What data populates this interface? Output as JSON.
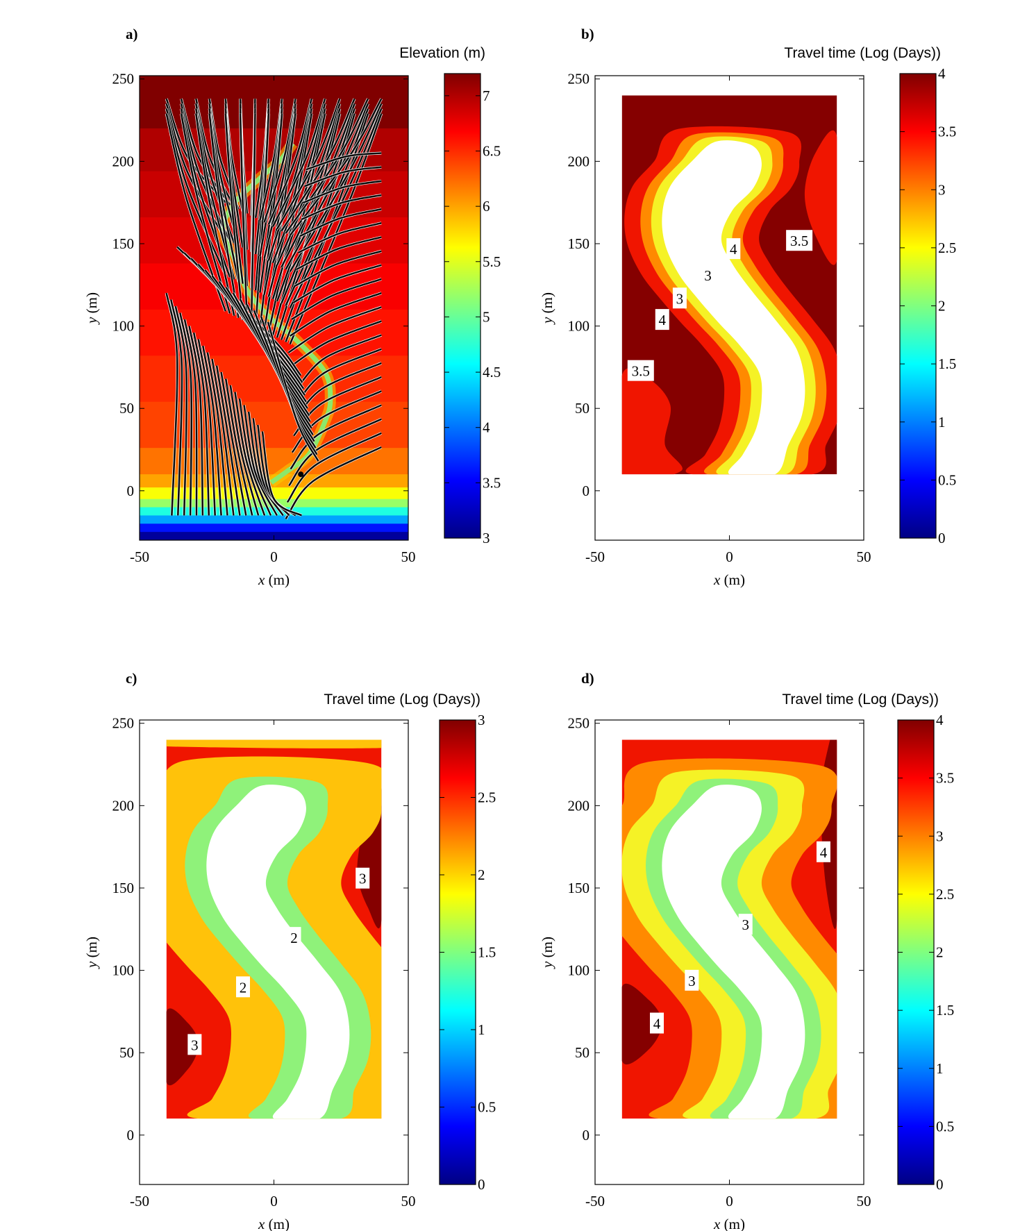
{
  "figure": {
    "panels": [
      {
        "id": "a",
        "label": "a)",
        "xlabel_var": "x",
        "xlabel_unit": " (m)",
        "ylabel_var": "y",
        "ylabel_unit": " (m)",
        "colorbar_title": "Elevation (m)",
        "xlim": [
          -50,
          50
        ],
        "ylim": [
          -30,
          252
        ],
        "xticks": [
          "-50",
          "0",
          "50"
        ],
        "yticks": [
          "0",
          "50",
          "100",
          "150",
          "200",
          "250"
        ],
        "colorbar_range": [
          3,
          7.2
        ],
        "colorbar_ticks": [
          "3",
          "3.5",
          "4",
          "4.5",
          "5",
          "5.5",
          "6",
          "6.5",
          "7"
        ],
        "contour_labels": []
      },
      {
        "id": "b",
        "label": "b)",
        "xlabel_var": "x",
        "xlabel_unit": " (m)",
        "ylabel_var": "y",
        "ylabel_unit": " (m)",
        "colorbar_title": "Travel time (Log (Days))",
        "xlim": [
          -50,
          50
        ],
        "ylim": [
          -30,
          252
        ],
        "xticks": [
          "-50",
          "0",
          "50"
        ],
        "yticks": [
          "0",
          "50",
          "100",
          "150",
          "200",
          "250"
        ],
        "colorbar_range": [
          0,
          4
        ],
        "colorbar_ticks": [
          "0",
          "0.5",
          "1",
          "1.5",
          "2",
          "2.5",
          "3",
          "3.5",
          "4"
        ],
        "contour_labels": [
          {
            "text": "4",
            "x": 1.5,
            "y": 147
          },
          {
            "text": "3.5",
            "x": 26,
            "y": 152
          },
          {
            "text": "3",
            "x": -8,
            "y": 131
          },
          {
            "text": "3",
            "x": -18.5,
            "y": 117
          },
          {
            "text": "4",
            "x": -25,
            "y": 104
          },
          {
            "text": "3.5",
            "x": -33,
            "y": 73
          }
        ]
      },
      {
        "id": "c",
        "label": "c)",
        "xlabel_var": "x",
        "xlabel_unit": " (m)",
        "ylabel_var": "y",
        "ylabel_unit": " (m)",
        "colorbar_title": "Travel time (Log (Days))",
        "xlim": [
          -50,
          50
        ],
        "ylim": [
          -30,
          252
        ],
        "xticks": [
          "-50",
          "0",
          "50"
        ],
        "yticks": [
          "0",
          "50",
          "100",
          "150",
          "200",
          "250"
        ],
        "colorbar_range": [
          0,
          3
        ],
        "colorbar_ticks": [
          "0",
          "0.5",
          "1",
          "1.5",
          "2",
          "2.5",
          "3"
        ],
        "contour_labels": [
          {
            "text": "3",
            "x": 33,
            "y": 156
          },
          {
            "text": "2",
            "x": 7.5,
            "y": 120
          },
          {
            "text": "2",
            "x": -11.5,
            "y": 90
          },
          {
            "text": "3",
            "x": -29.5,
            "y": 55
          }
        ]
      },
      {
        "id": "d",
        "label": "d)",
        "xlabel_var": "x",
        "xlabel_unit": " (m)",
        "ylabel_var": "y",
        "ylabel_unit": " (m)",
        "colorbar_title": "Travel time (Log (Days))",
        "xlim": [
          -50,
          50
        ],
        "ylim": [
          -30,
          252
        ],
        "xticks": [
          "-50",
          "0",
          "50"
        ],
        "yticks": [
          "0",
          "50",
          "100",
          "150",
          "200",
          "250"
        ],
        "colorbar_range": [
          0,
          4
        ],
        "colorbar_ticks": [
          "0",
          "0.5",
          "1",
          "1.5",
          "2",
          "2.5",
          "3",
          "3.5",
          "4"
        ],
        "contour_labels": [
          {
            "text": "4",
            "x": 35,
            "y": 172
          },
          {
            "text": "3",
            "x": 6,
            "y": 128
          },
          {
            "text": "3",
            "x": -14,
            "y": 94
          },
          {
            "text": "4",
            "x": -27,
            "y": 68
          }
        ]
      }
    ]
  },
  "chart_data": [
    {
      "type": "heatmap",
      "panel": "a",
      "title": "",
      "xlabel": "x (m)",
      "ylabel": "y (m)",
      "xlim": [
        -50,
        50
      ],
      "ylim": [
        -30,
        252
      ],
      "colorbar_label": "Elevation (m)",
      "colorbar_range": [
        3,
        7.2
      ],
      "elevation_bands": [
        {
          "y_from": 220,
          "y_to": 252,
          "elevation": 7.2
        },
        {
          "y_from": 194,
          "y_to": 220,
          "elevation": 7.0
        },
        {
          "y_from": 166,
          "y_to": 194,
          "elevation": 6.9
        },
        {
          "y_from": 138,
          "y_to": 166,
          "elevation": 6.8
        },
        {
          "y_from": 110,
          "y_to": 138,
          "elevation": 6.7
        },
        {
          "y_from": 82,
          "y_to": 110,
          "elevation": 6.6
        },
        {
          "y_from": 54,
          "y_to": 82,
          "elevation": 6.5
        },
        {
          "y_from": 26,
          "y_to": 54,
          "elevation": 6.4
        },
        {
          "y_from": 10,
          "y_to": 26,
          "elevation": 6.2
        },
        {
          "y_from": 2,
          "y_to": 10,
          "elevation": 6.0
        },
        {
          "y_from": -5,
          "y_to": 2,
          "elevation": 5.6
        },
        {
          "y_from": -10,
          "y_to": -5,
          "elevation": 5.2
        },
        {
          "y_from": -15,
          "y_to": -10,
          "elevation": 4.7
        },
        {
          "y_from": -20,
          "y_to": -15,
          "elevation": 4.2
        },
        {
          "y_from": -25,
          "y_to": -20,
          "elevation": 3.6
        },
        {
          "y_from": -30,
          "y_to": -25,
          "elevation": 3.1
        }
      ],
      "channel_centerline": [
        [
          -1,
          5
        ],
        [
          5,
          12
        ],
        [
          13,
          22
        ],
        [
          19,
          42
        ],
        [
          21,
          55
        ],
        [
          19,
          72
        ],
        [
          8,
          92
        ],
        [
          -2,
          106
        ],
        [
          -10,
          122
        ],
        [
          -15,
          142
        ],
        [
          -19,
          158
        ],
        [
          -15,
          174
        ],
        [
          -5,
          190
        ],
        [
          2,
          200
        ],
        [
          7,
          211
        ]
      ]
    },
    {
      "type": "heatmap",
      "panel": "b",
      "title": "",
      "xlabel": "x (m)",
      "ylabel": "y (m)",
      "xlim": [
        -50,
        50
      ],
      "ylim": [
        -30,
        252
      ],
      "colorbar_label": "Travel time (Log (Days))",
      "colorbar_range": [
        0,
        4
      ],
      "contour_levels": [
        2.5,
        3,
        3.5,
        4
      ]
    },
    {
      "type": "heatmap",
      "panel": "c",
      "title": "",
      "xlabel": "x (m)",
      "ylabel": "y (m)",
      "xlim": [
        -50,
        50
      ],
      "ylim": [
        -30,
        252
      ],
      "colorbar_label": "Travel time (Log (Days))",
      "colorbar_range": [
        0,
        3
      ],
      "contour_levels": [
        1.8,
        2.2,
        2.6,
        3
      ]
    },
    {
      "type": "heatmap",
      "panel": "d",
      "title": "",
      "xlabel": "x (m)",
      "ylabel": "y (m)",
      "xlim": [
        -50,
        50
      ],
      "ylim": [
        -30,
        252
      ],
      "colorbar_label": "Travel time (Log (Days))",
      "colorbar_range": [
        0,
        4
      ],
      "contour_levels": [
        2,
        2.5,
        3,
        3.5,
        4
      ]
    }
  ],
  "colors": {
    "band_white": "#ffffff",
    "band_green": "#8ff27a",
    "band_yellow": "#f5f226",
    "band_orange": "#ff8a00",
    "band_goldenrod": "#ffc20a",
    "band_red": "#f01500",
    "band_darkred": "#850000",
    "flowline_dark": "#0d0d0d",
    "flowline_light": "#ffffff"
  }
}
